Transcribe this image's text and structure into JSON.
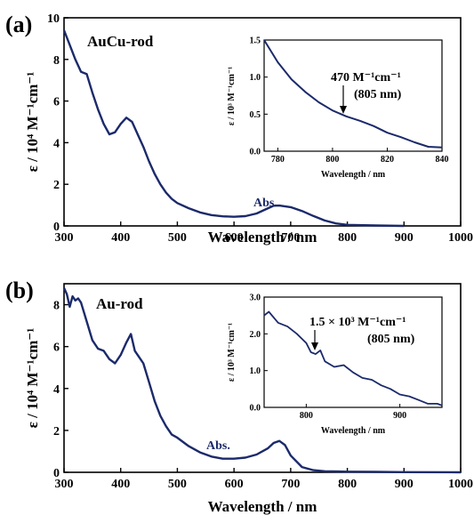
{
  "colors": {
    "line": "#1b2a6b",
    "axis": "#000000",
    "background": "#ffffff"
  },
  "panels": [
    {
      "label": "(a)",
      "sample": "AuCu-rod",
      "abs_label": "Abs.",
      "annotation": {
        "value": "470 M⁻¹cm⁻¹",
        "wl": "(805 nm)"
      }
    },
    {
      "label": "(b)",
      "sample": "Au-rod",
      "abs_label": "Abs.",
      "annotation": {
        "value": "1.5 × 10³ M⁻¹cm⁻¹",
        "wl": "(805 nm)"
      }
    }
  ],
  "chart_data": [
    {
      "type": "line",
      "panel": "(a)",
      "xlabel": "Wavelength / nm",
      "ylabel": "ε / 10⁴ M⁻¹cm⁻¹",
      "xlim": [
        300,
        1000
      ],
      "ylim": [
        0,
        10
      ],
      "xticks": [
        300,
        400,
        500,
        600,
        700,
        800,
        900,
        1000
      ],
      "yticks": [
        0,
        2,
        4,
        6,
        8,
        10
      ],
      "series": [
        {
          "x": [
            300,
            310,
            320,
            330,
            340,
            350,
            360,
            370,
            380,
            390,
            400,
            410,
            420,
            430,
            440,
            450,
            460,
            470,
            480,
            490,
            500,
            520,
            540,
            560,
            580,
            600,
            620,
            640,
            660,
            670,
            680,
            700,
            720,
            740,
            760,
            780,
            800,
            850,
            900
          ],
          "y": [
            9.4,
            8.7,
            8.0,
            7.4,
            7.3,
            6.4,
            5.6,
            4.9,
            4.4,
            4.5,
            4.9,
            5.2,
            5.0,
            4.4,
            3.8,
            3.1,
            2.5,
            2.0,
            1.6,
            1.3,
            1.1,
            0.85,
            0.65,
            0.52,
            0.46,
            0.44,
            0.47,
            0.6,
            0.85,
            0.97,
            0.98,
            0.9,
            0.72,
            0.48,
            0.26,
            0.12,
            0.05,
            0.02,
            0.0
          ]
        }
      ]
    },
    {
      "type": "line",
      "panel": "(a) inset",
      "xlabel": "Wavelength / nm",
      "ylabel": "ε / 10³ M⁻¹cm⁻¹",
      "xlim": [
        775,
        840
      ],
      "ylim": [
        0,
        1.5
      ],
      "xticks": [
        780,
        800,
        820,
        840
      ],
      "yticks": [
        0.0,
        0.5,
        1.0,
        1.5
      ],
      "series": [
        {
          "x": [
            775,
            780,
            785,
            790,
            795,
            800,
            805,
            810,
            815,
            820,
            825,
            830,
            835,
            840
          ],
          "y": [
            1.5,
            1.2,
            0.97,
            0.8,
            0.66,
            0.55,
            0.47,
            0.41,
            0.34,
            0.25,
            0.19,
            0.12,
            0.06,
            0.05
          ]
        }
      ]
    },
    {
      "type": "line",
      "panel": "(b)",
      "xlabel": "Wavelength / nm",
      "ylabel": "ε / 10⁴ M⁻¹cm⁻¹",
      "xlim": [
        300,
        1000
      ],
      "ylim": [
        0,
        9
      ],
      "xticks": [
        300,
        400,
        500,
        600,
        700,
        800,
        900,
        1000
      ],
      "yticks": [
        0,
        2,
        4,
        6,
        8
      ],
      "series": [
        {
          "x": [
            300,
            305,
            310,
            315,
            320,
            325,
            330,
            340,
            350,
            360,
            370,
            380,
            390,
            400,
            410,
            418,
            425,
            435,
            440,
            450,
            460,
            470,
            480,
            490,
            500,
            520,
            540,
            560,
            580,
            600,
            620,
            640,
            660,
            670,
            680,
            690,
            700,
            720,
            740,
            760,
            800,
            850,
            900,
            1000
          ],
          "y": [
            8.8,
            8.5,
            7.9,
            8.4,
            8.2,
            8.3,
            8.1,
            7.2,
            6.3,
            5.9,
            5.8,
            5.4,
            5.2,
            5.6,
            6.2,
            6.6,
            5.8,
            5.4,
            5.2,
            4.3,
            3.4,
            2.7,
            2.2,
            1.8,
            1.65,
            1.25,
            0.95,
            0.75,
            0.65,
            0.65,
            0.7,
            0.85,
            1.15,
            1.4,
            1.5,
            1.3,
            0.8,
            0.25,
            0.1,
            0.05,
            0.03,
            0.02,
            0.01,
            0.0
          ]
        }
      ]
    },
    {
      "type": "line",
      "panel": "(b) inset",
      "xlabel": "Wavelength / nm",
      "ylabel": "ε / 10³ M⁻¹cm⁻¹",
      "xlim": [
        755,
        945
      ],
      "ylim": [
        0,
        3.0
      ],
      "xticks": [
        800,
        900
      ],
      "yticks": [
        0.0,
        1.0,
        2.0,
        3.0
      ],
      "series": [
        {
          "x": [
            755,
            760,
            770,
            780,
            790,
            800,
            805,
            810,
            815,
            820,
            830,
            840,
            850,
            860,
            870,
            880,
            890,
            900,
            910,
            920,
            930,
            940,
            945
          ],
          "y": [
            2.5,
            2.6,
            2.3,
            2.2,
            2.0,
            1.75,
            1.5,
            1.45,
            1.55,
            1.25,
            1.1,
            1.15,
            0.95,
            0.8,
            0.75,
            0.6,
            0.5,
            0.35,
            0.3,
            0.2,
            0.1,
            0.1,
            0.05
          ]
        }
      ]
    }
  ]
}
